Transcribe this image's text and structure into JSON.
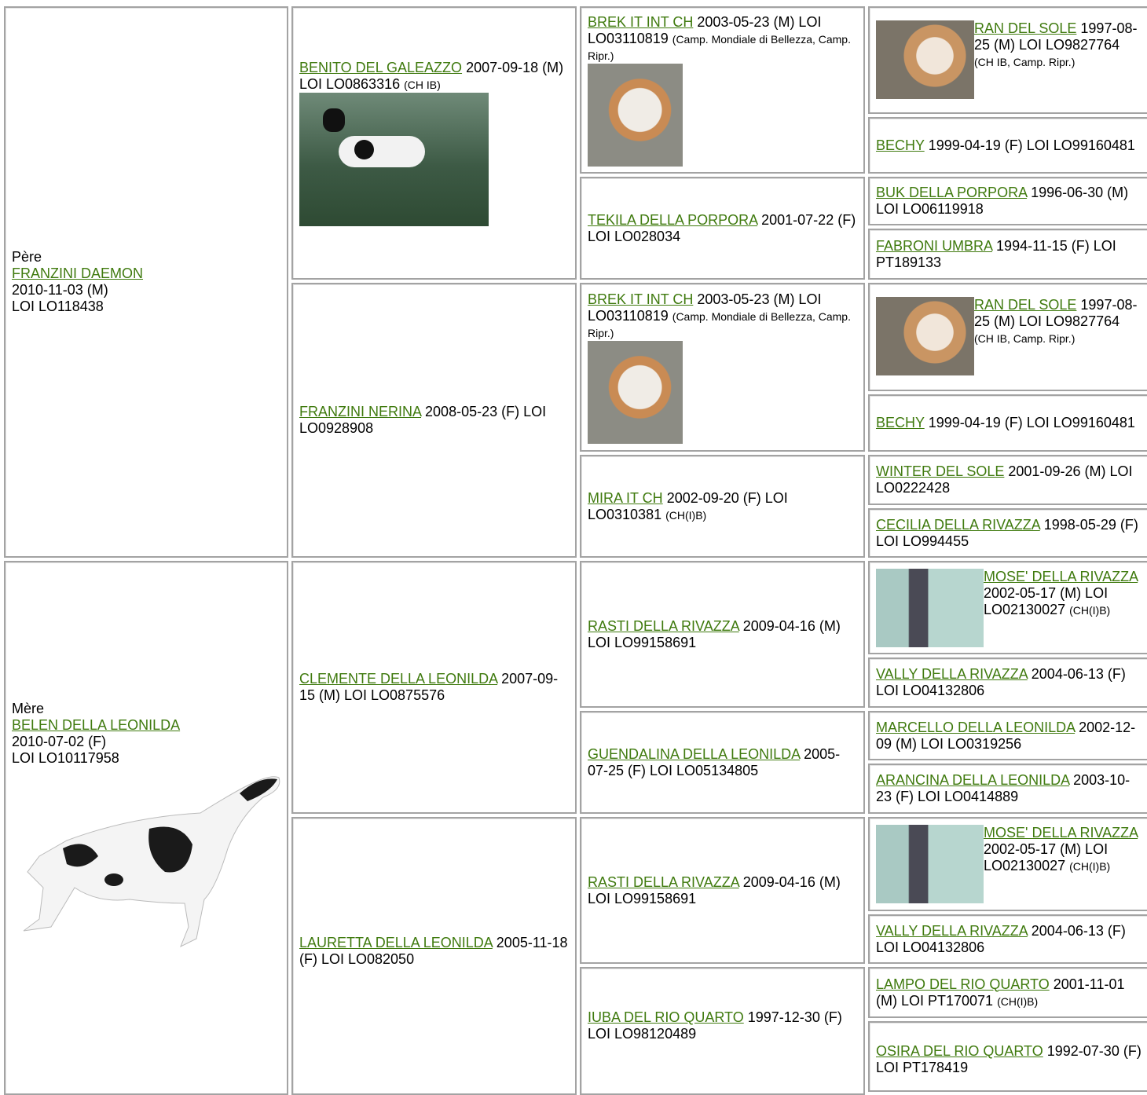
{
  "pedigree": {
    "sire": {
      "label": "Père",
      "name": "FRANZINI DAEMON",
      "lines": [
        "2010-11-03 (M)",
        "LOI LO118438"
      ],
      "sire": {
        "name": "BENITO DEL GALEAZZO",
        "info": "2007-09-18 (M) LOI LO0863316",
        "titles": "(CH IB)",
        "sire": {
          "name": "BREK IT INT CH",
          "info": "2003-05-23 (M) LOI LO03110819",
          "titles": "(Camp. Mondiale di Bellezza, Camp. Ripr.)",
          "sire": {
            "name": "RAN DEL SOLE",
            "info": "1997-08-25 (M) LOI LO9827764",
            "titles": "(CH IB, Camp. Ripr.)"
          },
          "dam": {
            "name": "BECHY",
            "info": "1999-04-19 (F) LOI LO99160481"
          }
        },
        "dam": {
          "name": "TEKILA DELLA PORPORA",
          "info": "2001-07-22 (F) LOI LO028034",
          "sire": {
            "name": "BUK DELLA PORPORA",
            "info": "1996-06-30 (M) LOI LO06119918"
          },
          "dam": {
            "name": "FABRONI UMBRA",
            "info": "1994-11-15 (F) LOI PT189133"
          }
        }
      },
      "dam": {
        "name": "FRANZINI NERINA",
        "info": "2008-05-23 (F) LOI LO0928908",
        "sire": {
          "name": "BREK IT INT CH",
          "info": "2003-05-23 (M) LOI LO03110819",
          "titles": "(Camp. Mondiale di Bellezza, Camp. Ripr.)",
          "sire": {
            "name": "RAN DEL SOLE",
            "info": "1997-08-25 (M) LOI LO9827764",
            "titles": "(CH IB, Camp. Ripr.)"
          },
          "dam": {
            "name": "BECHY",
            "info": "1999-04-19 (F) LOI LO99160481"
          }
        },
        "dam": {
          "name": "MIRA IT CH",
          "info": "2002-09-20 (F) LOI LO0310381",
          "titles": "(CH(I)B)",
          "sire": {
            "name": "WINTER DEL SOLE",
            "info": "2001-09-26 (M) LOI LO0222428"
          },
          "dam": {
            "name": "CECILIA DELLA RIVAZZA",
            "info": "1998-05-29 (F) LOI LO994455"
          }
        }
      }
    },
    "dam": {
      "label": "Mère",
      "name": "BELEN DELLA LEONILDA",
      "lines": [
        "2010-07-02 (F)",
        "LOI LO10117958"
      ],
      "sire": {
        "name": "CLEMENTE DELLA LEONILDA",
        "info": "2007-09-15 (M) LOI LO0875576",
        "sire": {
          "name": "RASTI DELLA RIVAZZA",
          "info": "2009-04-16 (M) LOI LO99158691",
          "sire": {
            "name": "MOSE' DELLA RIVAZZA",
            "info": "2002-05-17 (M) LOI LO02130027",
            "titles": "(CH(I)B)"
          },
          "dam": {
            "name": "VALLY DELLA RIVAZZA",
            "info": "2004-06-13 (F) LOI LO04132806"
          }
        },
        "dam": {
          "name": "GUENDALINA DELLA LEONILDA",
          "info": "2005-07-25 (F) LOI LO05134805",
          "sire": {
            "name": "MARCELLO DELLA LEONILDA",
            "info": "2002-12-09 (M) LOI LO0319256"
          },
          "dam": {
            "name": "ARANCINA DELLA LEONILDA",
            "info": "2003-10-23 (F) LOI LO0414889"
          }
        }
      },
      "dam": {
        "name": "LAURETTA DELLA LEONILDA",
        "info": "2005-11-18 (F) LOI LO082050",
        "sire": {
          "name": "RASTI DELLA RIVAZZA",
          "info": "2009-04-16 (M) LOI LO99158691",
          "sire": {
            "name": "MOSE' DELLA RIVAZZA",
            "info": "2002-05-17 (M) LOI LO02130027",
            "titles": "(CH(I)B)"
          },
          "dam": {
            "name": "VALLY DELLA RIVAZZA",
            "info": "2004-06-13 (F) LOI LO04132806"
          }
        },
        "dam": {
          "name": "IUBA DEL RIO QUARTO",
          "info": "1997-12-30 (F) LOI LO98120489",
          "sire": {
            "name": "LAMPO DEL RIO QUARTO",
            "info": "2001-11-01 (M) LOI PT170071",
            "titles": "(CH(I)B)"
          },
          "dam": {
            "name": "OSIRA DEL RIO QUARTO",
            "info": "1992-07-30 (F) LOI PT178419"
          }
        }
      }
    }
  }
}
